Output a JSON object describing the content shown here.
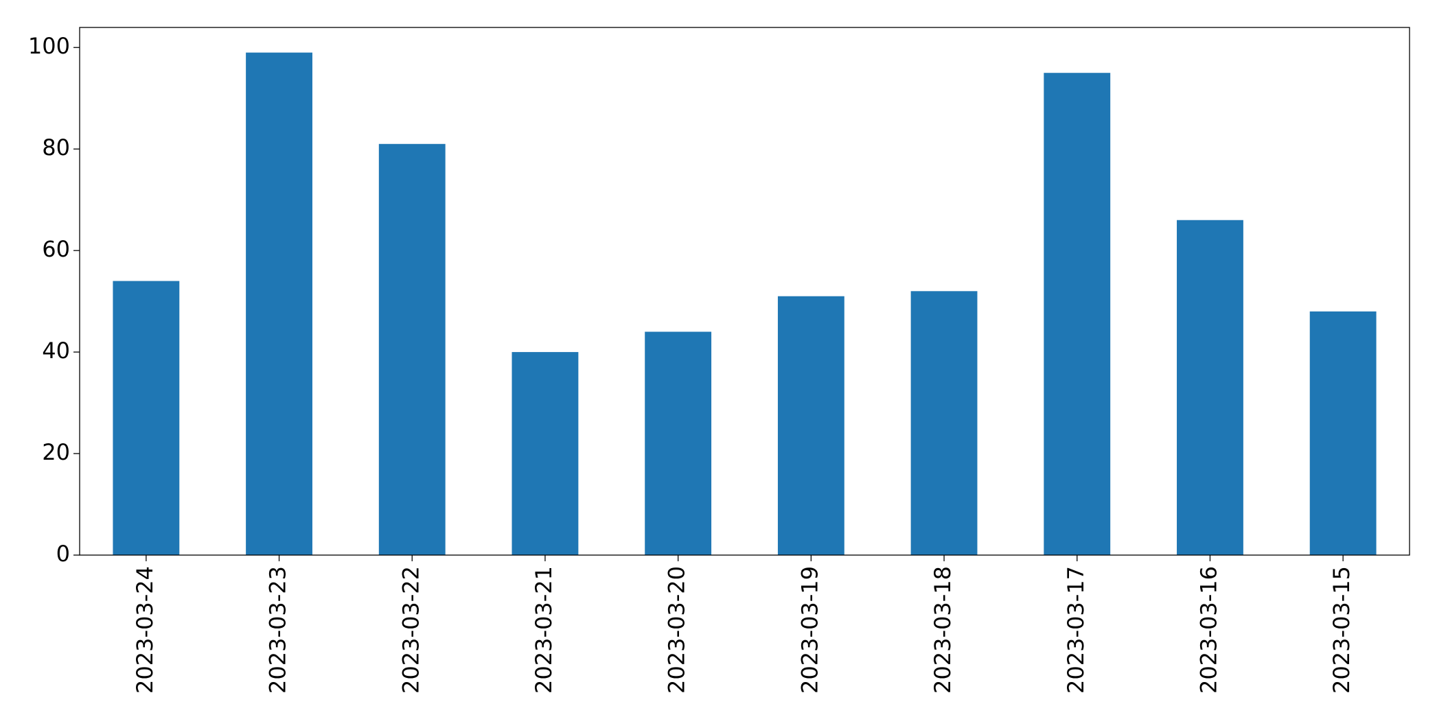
{
  "chart_data": {
    "type": "bar",
    "categories": [
      "2023-03-24",
      "2023-03-23",
      "2023-03-22",
      "2023-03-21",
      "2023-03-20",
      "2023-03-19",
      "2023-03-18",
      "2023-03-17",
      "2023-03-16",
      "2023-03-15"
    ],
    "values": [
      54,
      99,
      81,
      40,
      44,
      51,
      52,
      95,
      66,
      48
    ],
    "color": "#1f77b4",
    "ylim": [
      0,
      103.95
    ],
    "yticks": [
      0,
      20,
      40,
      60,
      80,
      100
    ],
    "grid": false
  }
}
